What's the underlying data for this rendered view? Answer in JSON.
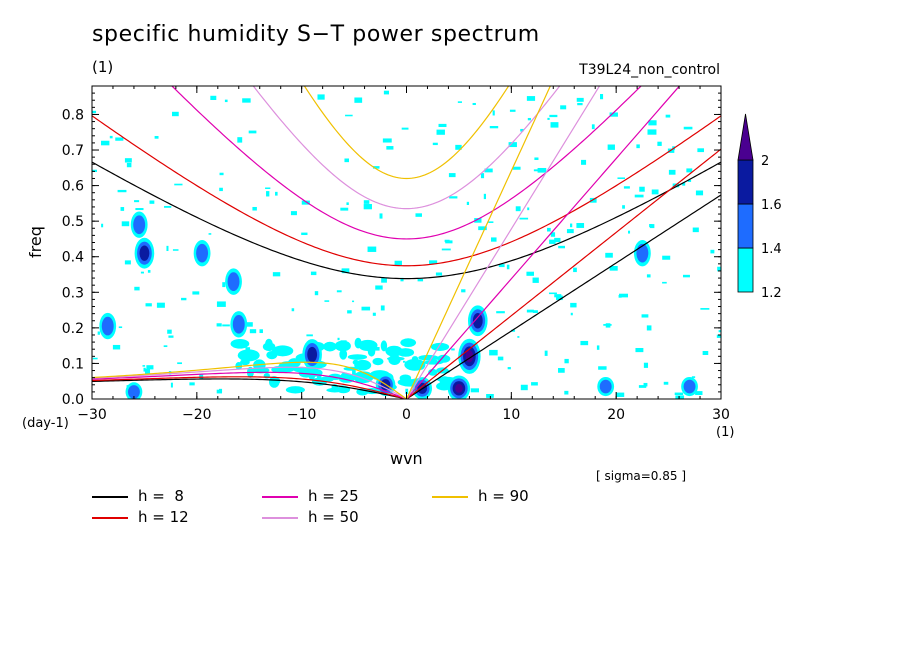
{
  "title": "specific humidity S−T power spectrum",
  "subtitle": "(1)",
  "run_label": "T39L24_non_control",
  "sigma_note": "[ sigma=0.85 ]",
  "x_unit_left": "(day-1)",
  "x_unit_right": "(1)",
  "colors": {
    "cyan": "#00ffff",
    "blue": "#1e6cff",
    "navy": "#0a1aa0",
    "purple": "#4a0090"
  },
  "legend": [
    {
      "label": "h =  8",
      "color": "#000000"
    },
    {
      "label": "h = 12",
      "color": "#e00000"
    },
    {
      "label": "h = 25",
      "color": "#e000b0"
    },
    {
      "label": "h = 50",
      "color": "#dd90dd"
    },
    {
      "label": "h = 90",
      "color": "#f0c000"
    }
  ],
  "colorbar": {
    "levels": [
      "1.2",
      "1.4",
      "1.6",
      "2"
    ],
    "colors": [
      "#00ffff",
      "#1e6cff",
      "#0a1aa0",
      "#4a0090"
    ]
  },
  "chart_data": {
    "type": "heatmap",
    "title": "specific humidity S−T power spectrum",
    "xlabel": "wvn",
    "ylabel": "freq",
    "xlim": [
      -30,
      30
    ],
    "ylim": [
      0,
      0.88
    ],
    "xticks": [
      "−30",
      "−20",
      "−10",
      "0",
      "10",
      "20",
      "30"
    ],
    "yticks": [
      "0.0",
      "0.1",
      "0.2",
      "0.3",
      "0.4",
      "0.5",
      "0.6",
      "0.7",
      "0.8"
    ],
    "contour_levels": [
      1.2,
      1.4,
      1.6,
      2
    ],
    "dispersion_curves": [
      {
        "name": "h =  8",
        "equivalent_depth": 8
      },
      {
        "name": "h = 12",
        "equivalent_depth": 12
      },
      {
        "name": "h = 25",
        "equivalent_depth": 25
      },
      {
        "name": "h = 50",
        "equivalent_depth": 50
      },
      {
        "name": "h = 90",
        "equivalent_depth": 90
      }
    ],
    "blobs": [
      {
        "x": -28.5,
        "y": 0.205,
        "level": 1.4
      },
      {
        "x": -25.0,
        "y": 0.41,
        "level": 1.6
      },
      {
        "x": -25.5,
        "y": 0.49,
        "level": 1.4
      },
      {
        "x": -19.5,
        "y": 0.41,
        "level": 1.4
      },
      {
        "x": -16.0,
        "y": 0.21,
        "level": 1.4
      },
      {
        "x": -16.5,
        "y": 0.33,
        "level": 1.4
      },
      {
        "x": -9.0,
        "y": 0.125,
        "level": 1.6
      },
      {
        "x": -2.0,
        "y": 0.04,
        "level": 1.6
      },
      {
        "x": 1.5,
        "y": 0.03,
        "level": 1.6
      },
      {
        "x": 5.0,
        "y": 0.03,
        "level": 2
      },
      {
        "x": 6.0,
        "y": 0.12,
        "level": 2
      },
      {
        "x": 6.8,
        "y": 0.22,
        "level": 1.6
      },
      {
        "x": 19.0,
        "y": 0.035,
        "level": 1.4
      },
      {
        "x": 22.5,
        "y": 0.41,
        "level": 1.4
      },
      {
        "x": 27.0,
        "y": 0.035,
        "level": 1.4
      },
      {
        "x": -26.0,
        "y": 0.02,
        "level": 1.4
      }
    ]
  }
}
